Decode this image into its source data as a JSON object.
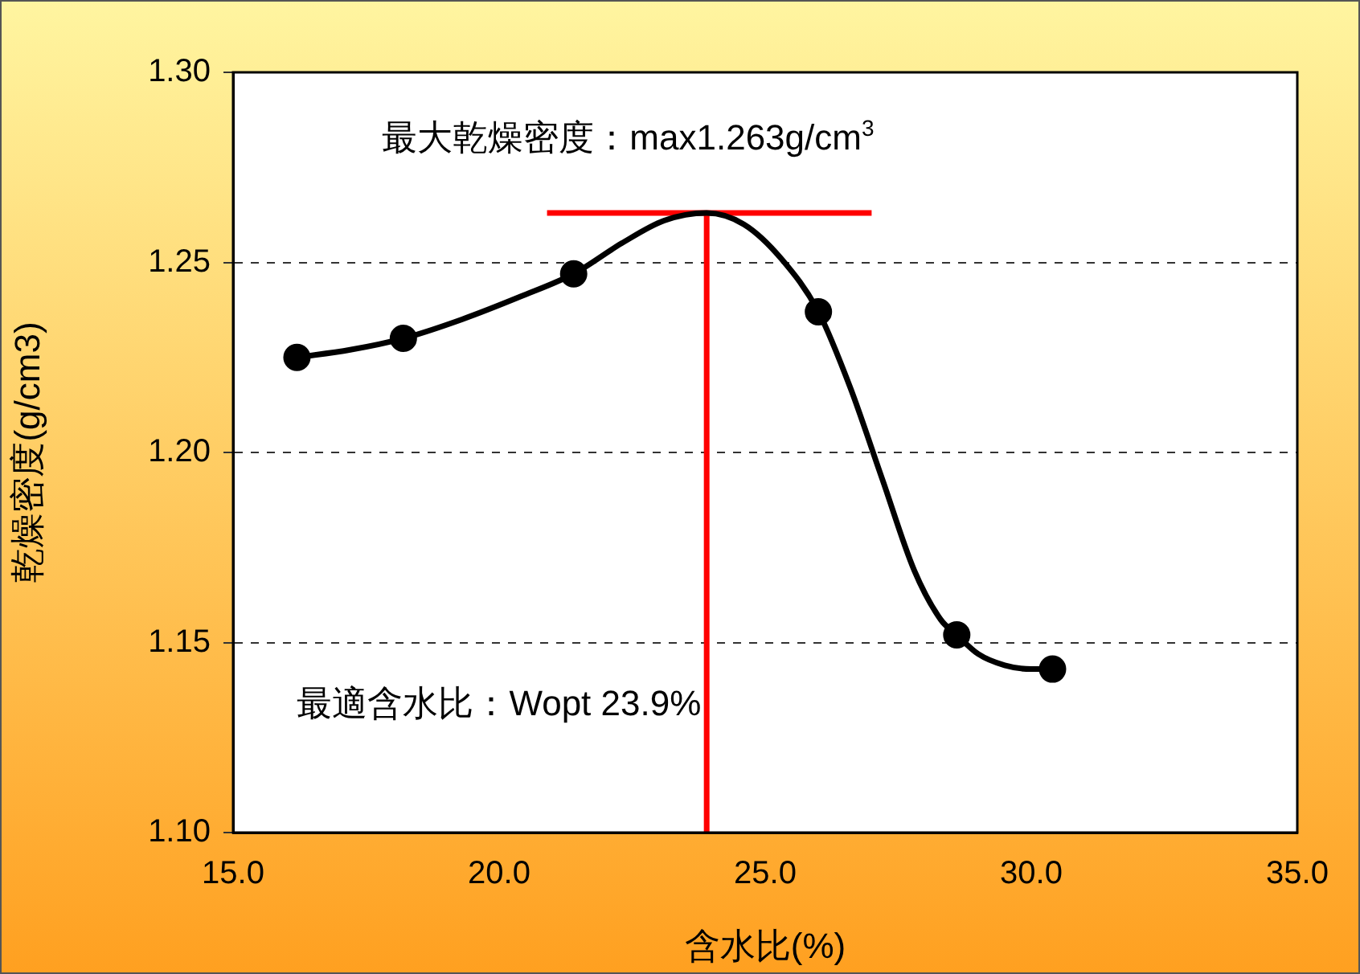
{
  "chart_data": {
    "type": "scatter",
    "xlabel": "含水比(%)",
    "ylabel": "乾燥密度(g/cm3)",
    "annotations": [
      "最大乾燥密度：max1.263g/cm$^{3}$",
      "最適含水比：Wopt 23.9%"
    ],
    "series": [
      {
        "type": "scatter",
        "marker": "circle",
        "color": "#000000",
        "x": [
          16.2,
          18.2,
          21.4,
          26.0,
          28.6,
          30.4
        ],
        "values": [
          1.225,
          1.23,
          1.247,
          1.237,
          1.152,
          1.143
        ]
      },
      {
        "type": "line",
        "marker": "none",
        "color": "#000000",
        "x": [
          16.2,
          17.2,
          18.2,
          19.3,
          20.4,
          21.4,
          22.3,
          23.1,
          23.9,
          24.6,
          25.3,
          26.0,
          26.6,
          27.2,
          27.8,
          28.3,
          28.6,
          29.0,
          29.5,
          30.0,
          30.4
        ],
        "values": [
          1.225,
          1.227,
          1.23,
          1.235,
          1.241,
          1.247,
          1.255,
          1.261,
          1.263,
          1.26,
          1.251,
          1.237,
          1.217,
          1.193,
          1.169,
          1.156,
          1.152,
          1.147,
          1.144,
          1.143,
          1.143
        ]
      },
      {
        "type": "line",
        "marker": "none",
        "color": "#ff0000",
        "x": [
          20.9,
          27.0
        ],
        "values": [
          1.263,
          1.263
        ]
      },
      {
        "type": "line",
        "marker": "none",
        "color": "#ff0000",
        "x": [
          23.9,
          23.9
        ],
        "values": [
          1.1,
          1.263
        ]
      }
    ],
    "xlim": [
      15,
      35
    ],
    "xticks": [
      {
        "value": 15,
        "label": "15.0"
      },
      {
        "value": 20,
        "label": "20.0"
      },
      {
        "value": 25,
        "label": "25.0"
      },
      {
        "value": 30,
        "label": "30.0"
      },
      {
        "value": 35,
        "label": "35.0"
      }
    ],
    "ylim": [
      1.1,
      1.3
    ],
    "yticks": [
      {
        "value": 1.1,
        "label": "1.10"
      },
      {
        "value": 1.15,
        "label": "1.15"
      },
      {
        "value": 1.2,
        "label": "1.20"
      },
      {
        "value": 1.25,
        "label": "1.25"
      },
      {
        "value": 1.3,
        "label": "1.30"
      }
    ],
    "grid": "y",
    "line_style": "solid",
    "legend": false
  }
}
